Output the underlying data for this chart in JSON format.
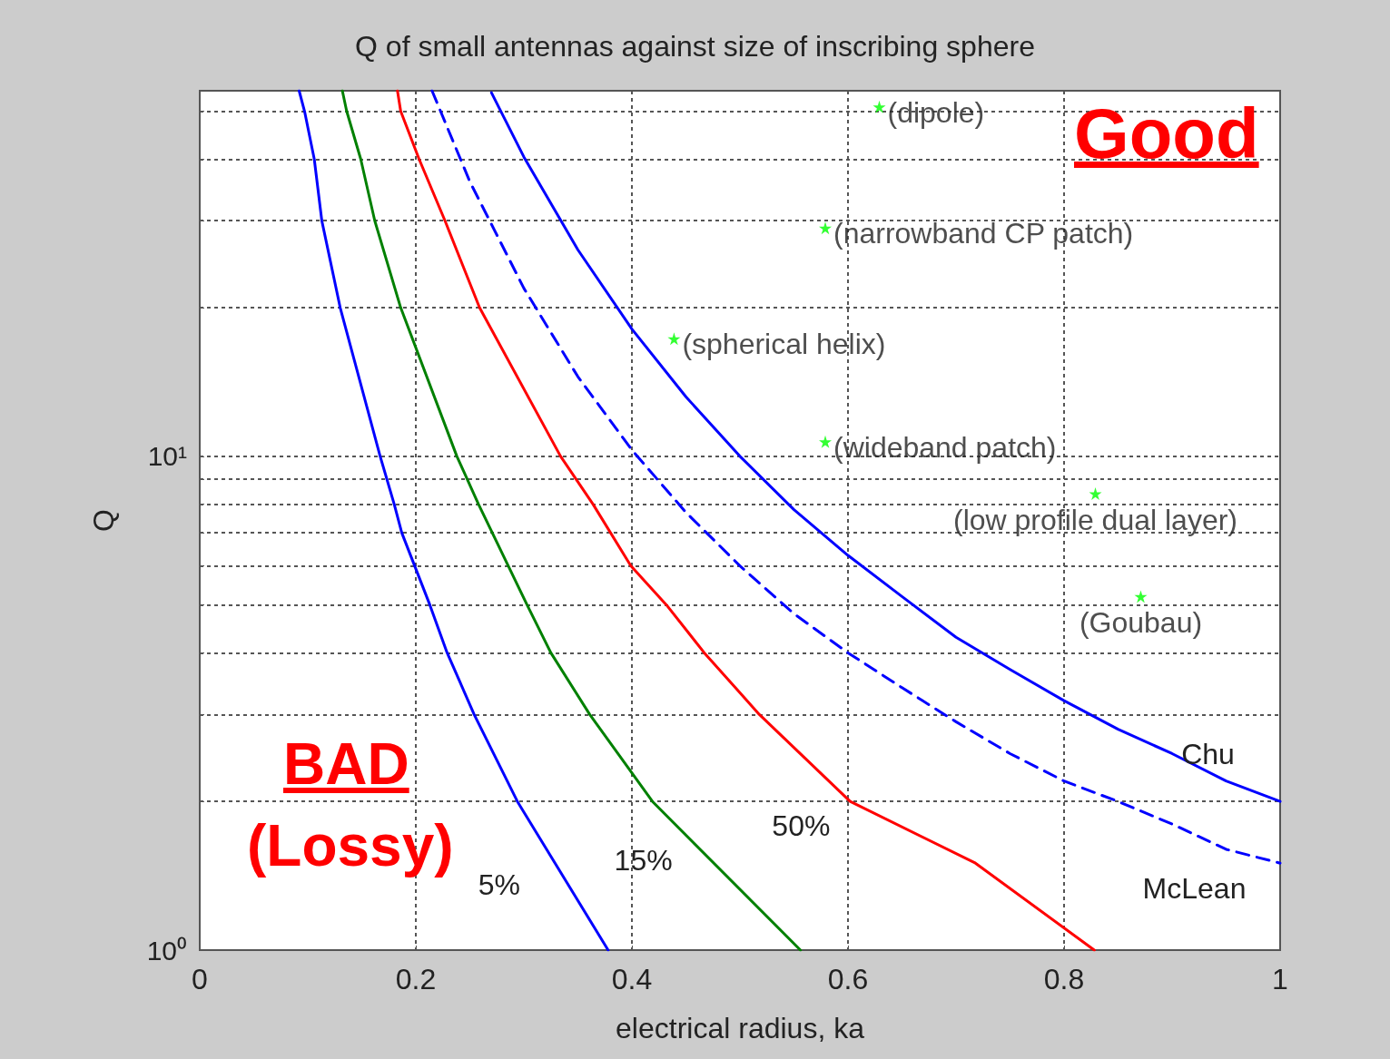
{
  "chart_data": {
    "type": "line",
    "title": "Q of small antennas against size of inscribing sphere",
    "xlabel": "electrical radius, ka",
    "ylabel": "Q",
    "log": "y",
    "grid": true,
    "legend": false,
    "marker": "none",
    "xlim": [
      0,
      1
    ],
    "xticks": [
      0,
      0.2,
      0.4,
      0.6,
      0.8,
      1
    ],
    "ylim": [
      1,
      55
    ],
    "yticks": [
      {
        "value": 1,
        "label": "10⁰"
      },
      {
        "value": 2,
        "label": null
      },
      {
        "value": 3,
        "label": null
      },
      {
        "value": 4,
        "label": null
      },
      {
        "value": 5,
        "label": null
      },
      {
        "value": 6,
        "label": null
      },
      {
        "value": 7,
        "label": null
      },
      {
        "value": 8,
        "label": null
      },
      {
        "value": 9,
        "label": null
      },
      {
        "value": 10,
        "label": "10¹"
      },
      {
        "value": 20,
        "label": null
      },
      {
        "value": 30,
        "label": null
      },
      {
        "value": 40,
        "label": null
      },
      {
        "value": 50,
        "label": null
      }
    ],
    "series": [
      {
        "name": "5%",
        "color": "#0000ff",
        "x": [
          0.092,
          0.097,
          0.106,
          0.113,
          0.13,
          0.167,
          0.18,
          0.187,
          0.213,
          0.229,
          0.254,
          0.294,
          0.378
        ],
        "values": [
          55,
          50,
          40,
          30,
          20,
          10,
          8,
          7,
          5,
          4,
          3,
          2,
          1
        ]
      },
      {
        "name": "15%",
        "color": "#008000",
        "x": [
          0.132,
          0.136,
          0.149,
          0.162,
          0.186,
          0.238,
          0.258,
          0.303,
          0.325,
          0.361,
          0.419,
          0.556
        ],
        "values": [
          55,
          50,
          40,
          30,
          20,
          10,
          8,
          5,
          4,
          3,
          2,
          1
        ]
      },
      {
        "name": "50%",
        "color": "#ff0000",
        "x": [
          0.183,
          0.186,
          0.203,
          0.227,
          0.259,
          0.334,
          0.364,
          0.399,
          0.432,
          0.467,
          0.518,
          0.602,
          0.718,
          0.828
        ],
        "values": [
          55,
          50,
          40,
          30,
          20,
          10,
          8,
          6,
          5,
          4,
          3,
          2,
          1.5,
          1
        ]
      },
      {
        "name": "McLean",
        "color": "#0000ff",
        "line_style": "dashed",
        "x": [
          0.215,
          0.25,
          0.3,
          0.35,
          0.4,
          0.45,
          0.5,
          0.55,
          0.6,
          0.65,
          0.7,
          0.75,
          0.8,
          0.85,
          0.9,
          0.95,
          1
        ],
        "values": [
          55,
          36,
          21.9,
          14.5,
          10.3,
          7.7,
          6,
          4.8,
          4,
          3.4,
          2.9,
          2.5,
          2.2,
          2,
          1.8,
          1.6,
          1.5
        ]
      },
      {
        "name": "Chu",
        "color": "#0000ff",
        "x": [
          0.27,
          0.3,
          0.35,
          0.4,
          0.45,
          0.5,
          0.55,
          0.6,
          0.65,
          0.7,
          0.75,
          0.8,
          0.85,
          0.9,
          0.95,
          1
        ],
        "values": [
          54.5,
          40.4,
          26.2,
          18.1,
          13.2,
          10,
          7.8,
          6.3,
          5.2,
          4.3,
          3.7,
          3.2,
          2.8,
          2.5,
          2.2,
          2
        ]
      },
      {
        "type": "scatter",
        "marker": "star",
        "color": "#00ff00",
        "x": [
          0.629,
          0.579,
          0.439,
          0.579,
          0.829,
          0.871
        ],
        "values": [
          51,
          29,
          17.3,
          10.7,
          8.4,
          5.2
        ]
      }
    ],
    "annotations": [
      {
        "text": "(dipole)",
        "x": 0.629,
        "y": 51
      },
      {
        "text": "(narrowband CP patch)",
        "x": 0.579,
        "y": 29
      },
      {
        "text": "(spherical helix)",
        "x": 0.439,
        "y": 17.3
      },
      {
        "text": "(wideband patch)",
        "x": 0.579,
        "y": 10.7
      },
      {
        "text": "(low profile dual layer)",
        "x": 0.829,
        "y": 8.4
      },
      {
        "text": "(Goubau)",
        "x": 0.871,
        "y": 5.2
      },
      "Good",
      "BAD",
      "(Lossy)"
    ]
  }
}
